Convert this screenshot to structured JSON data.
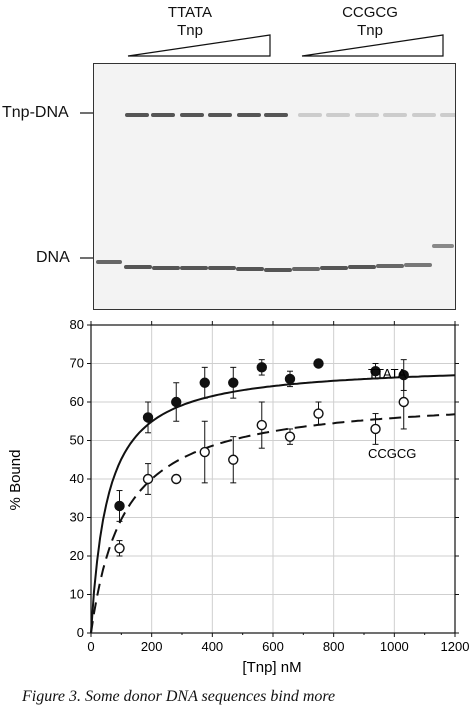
{
  "gel": {
    "groups": [
      {
        "name": "TTATA",
        "protein": "Tnp"
      },
      {
        "name": "CCGCG",
        "protein": "Tnp"
      }
    ],
    "row_labels": {
      "complex": "Tnp-DNA",
      "free": "DNA"
    }
  },
  "chart_data": {
    "type": "scatter",
    "xlabel": "[Tnp] nM",
    "ylabel": "% Bound",
    "xlim": [
      0,
      1200
    ],
    "ylim": [
      0,
      80
    ],
    "xticks": [
      0,
      200,
      400,
      600,
      800,
      1000,
      1200
    ],
    "yticks": [
      0,
      10,
      20,
      30,
      40,
      50,
      60,
      70,
      80
    ],
    "grid": true,
    "series": [
      {
        "name": "TTATA",
        "marker": "filled-circle",
        "fit": "solid",
        "fit_params": {
          "bmax": 70,
          "kd": 55
        },
        "x": [
          94,
          188,
          281,
          375,
          469,
          563,
          656,
          750,
          938,
          1031
        ],
        "y": [
          33,
          56,
          60,
          65,
          65,
          69,
          66,
          70,
          68,
          67
        ],
        "err": [
          4,
          4,
          5,
          4,
          4,
          2,
          2,
          1,
          2,
          4
        ]
      },
      {
        "name": "CCGCG",
        "marker": "open-circle",
        "fit": "dashed",
        "fit_params": {
          "bmax": 62,
          "kd": 110
        },
        "x": [
          94,
          188,
          281,
          375,
          469,
          563,
          656,
          750,
          938,
          1031
        ],
        "y": [
          22,
          40,
          40,
          47,
          45,
          54,
          51,
          57,
          53,
          60
        ],
        "err": [
          2,
          4,
          1,
          8,
          6,
          6,
          2,
          3,
          4,
          7
        ]
      }
    ],
    "annotations": [
      "TTATA",
      "CCGCG"
    ]
  },
  "caption": {
    "text": "Figure 3. Some donor DNA sequences bind more"
  }
}
